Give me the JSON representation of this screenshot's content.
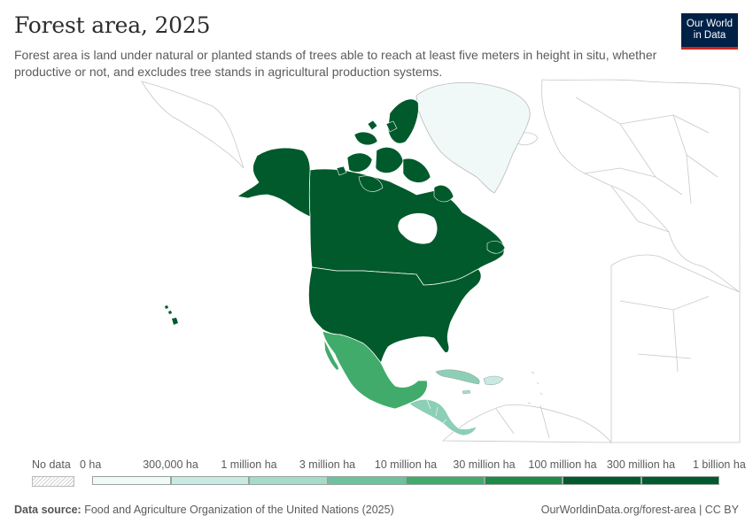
{
  "header": {
    "title": "Forest area, 2025",
    "subtitle": "Forest area is land under natural or planted stands of trees able to reach at least five meters in height in situ, whether productive or not, and excludes tree stands in agricultural production systems."
  },
  "logo": {
    "line1": "Our World",
    "line2": "in Data"
  },
  "map": {
    "region": "North America",
    "countries": [
      {
        "name": "Canada",
        "color": "#005a2b"
      },
      {
        "name": "United States",
        "color": "#005a2b"
      },
      {
        "name": "Mexico",
        "color": "#41ab6b"
      },
      {
        "name": "Greenland",
        "color": "#f0f9f8"
      },
      {
        "name": "Cuba",
        "color": "#8ccfb6"
      },
      {
        "name": "Central America",
        "color": "#8ccfb6"
      }
    ]
  },
  "legend": {
    "no_data_label": "No data",
    "bins": [
      {
        "label": "0 ha",
        "color": "#ffffff"
      },
      {
        "label": "300,000 ha",
        "color": "#e6f1fa"
      },
      {
        "label": "1 million ha",
        "color": "#c9eae2"
      },
      {
        "label": "3 million ha",
        "color": "#a4dcc8"
      },
      {
        "label": "10 million ha",
        "color": "#6cc39d"
      },
      {
        "label": "30 million ha",
        "color": "#41ab6b"
      },
      {
        "label": "100 million ha",
        "color": "#1d8a45"
      },
      {
        "label": "300 million ha",
        "color": "#005a2b"
      },
      {
        "label": "1 billion ha",
        "color": "#005a2b"
      }
    ]
  },
  "footer": {
    "source_label": "Data source:",
    "source_text": "Food and Agriculture Organization of the United Nations (2025)",
    "url": "OurWorldinData.org/forest-area | CC BY"
  }
}
